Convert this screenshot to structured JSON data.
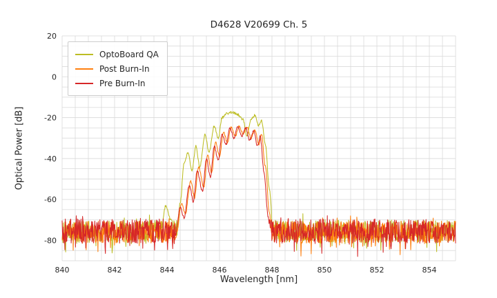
{
  "chart_data": {
    "type": "line",
    "title": "D4628 V20699 Ch. 5",
    "xlabel": "Wavelength [nm]",
    "ylabel": "Optical Power [dB]",
    "xlim": [
      840,
      855
    ],
    "ylim": [
      -90,
      20
    ],
    "x_major_ticks": [
      840,
      842,
      844,
      846,
      848,
      850,
      852,
      854
    ],
    "y_major_ticks": [
      20,
      0,
      -20,
      -40,
      -60,
      -80
    ],
    "x_minor_step": 0.5,
    "y_minor_step": 5,
    "grid": true,
    "legend_position": "upper-left",
    "grid_color": "#d9d9d9",
    "text_color": "#262626",
    "series": [
      {
        "name": "OptoBoard QA",
        "color": "#bcbd22",
        "noise_floor_db": -75.5,
        "noise_spread_db": 9,
        "envelope": [
          [
            843.75,
            -77
          ],
          [
            843.95,
            -63
          ],
          [
            844.15,
            -70
          ],
          [
            844.35,
            -79
          ],
          [
            844.5,
            -62
          ],
          [
            844.65,
            -42
          ],
          [
            844.8,
            -37
          ],
          [
            844.95,
            -46
          ],
          [
            845.1,
            -34
          ],
          [
            845.25,
            -44
          ],
          [
            845.45,
            -28.5
          ],
          [
            845.6,
            -37
          ],
          [
            845.8,
            -24
          ],
          [
            845.95,
            -30
          ],
          [
            846.1,
            -20
          ],
          [
            846.3,
            -18
          ],
          [
            846.5,
            -17.3
          ],
          [
            846.7,
            -18.6
          ],
          [
            846.9,
            -21
          ],
          [
            847.05,
            -29
          ],
          [
            847.2,
            -21
          ],
          [
            847.35,
            -18.8
          ],
          [
            847.5,
            -24
          ],
          [
            847.6,
            -21.5
          ],
          [
            847.75,
            -33
          ],
          [
            847.9,
            -55
          ],
          [
            848.05,
            -77
          ]
        ]
      },
      {
        "name": "Post Burn-In",
        "color": "#ff7f0e",
        "noise_floor_db": -76,
        "noise_spread_db": 9,
        "envelope": [
          [
            844.35,
            -78
          ],
          [
            844.55,
            -62
          ],
          [
            844.7,
            -67
          ],
          [
            844.9,
            -51
          ],
          [
            845.05,
            -59
          ],
          [
            845.2,
            -44
          ],
          [
            845.4,
            -54
          ],
          [
            845.55,
            -38
          ],
          [
            845.7,
            -47
          ],
          [
            845.85,
            -32
          ],
          [
            846.0,
            -39
          ],
          [
            846.15,
            -27
          ],
          [
            846.3,
            -32
          ],
          [
            846.45,
            -24.5
          ],
          [
            846.6,
            -29
          ],
          [
            846.75,
            -24
          ],
          [
            846.9,
            -28
          ],
          [
            847.05,
            -24.5
          ],
          [
            847.2,
            -30
          ],
          [
            847.35,
            -26
          ],
          [
            847.5,
            -33
          ],
          [
            847.6,
            -28
          ],
          [
            847.75,
            -44
          ],
          [
            847.9,
            -66
          ],
          [
            848.0,
            -78
          ]
        ]
      },
      {
        "name": "Pre Burn-In",
        "color": "#d62728",
        "noise_floor_db": -75.5,
        "noise_spread_db": 10,
        "envelope": [
          [
            844.3,
            -79
          ],
          [
            844.5,
            -64
          ],
          [
            844.65,
            -69
          ],
          [
            844.85,
            -53
          ],
          [
            845.0,
            -61
          ],
          [
            845.15,
            -46
          ],
          [
            845.35,
            -56
          ],
          [
            845.5,
            -40
          ],
          [
            845.65,
            -49
          ],
          [
            845.8,
            -34
          ],
          [
            845.95,
            -41
          ],
          [
            846.1,
            -28
          ],
          [
            846.25,
            -33
          ],
          [
            846.4,
            -25
          ],
          [
            846.55,
            -30
          ],
          [
            846.7,
            -24.5
          ],
          [
            846.85,
            -29
          ],
          [
            847.0,
            -25
          ],
          [
            847.15,
            -31
          ],
          [
            847.3,
            -26.5
          ],
          [
            847.45,
            -34
          ],
          [
            847.55,
            -29
          ],
          [
            847.7,
            -47
          ],
          [
            847.85,
            -68
          ],
          [
            847.95,
            -79
          ]
        ]
      }
    ]
  }
}
